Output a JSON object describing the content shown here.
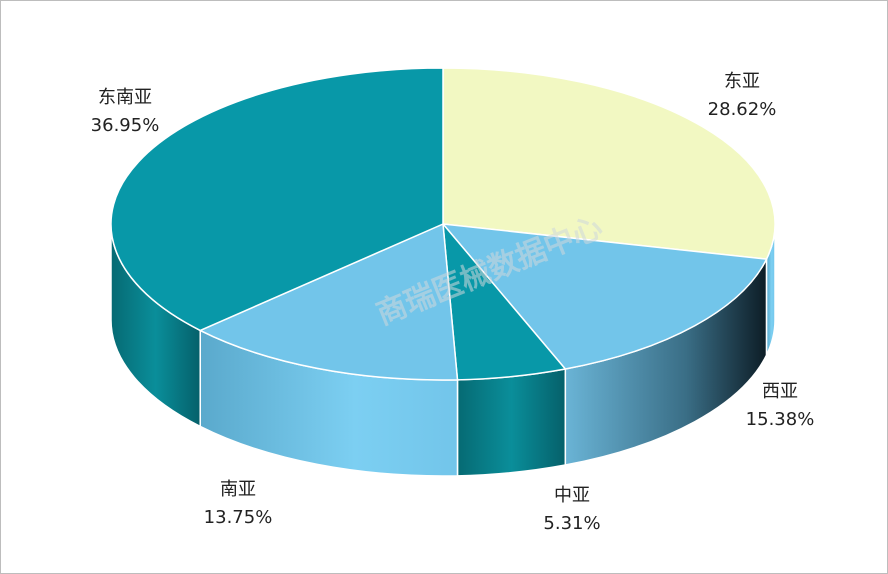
{
  "chart_data": {
    "type": "pie",
    "categories": [
      "东亚",
      "西亚",
      "中亚",
      "南亚",
      "东南亚"
    ],
    "values": [
      28.62,
      15.38,
      5.31,
      13.75,
      36.95
    ],
    "value_labels": [
      "28.62%",
      "15.38%",
      "5.31%",
      "13.75%",
      "36.95%"
    ],
    "colors": [
      "#f2f8c2",
      "#72c5ea",
      "#0898a8",
      "#72c5ea",
      "#0898a8"
    ],
    "watermark": "商瑞医械数据中心"
  }
}
